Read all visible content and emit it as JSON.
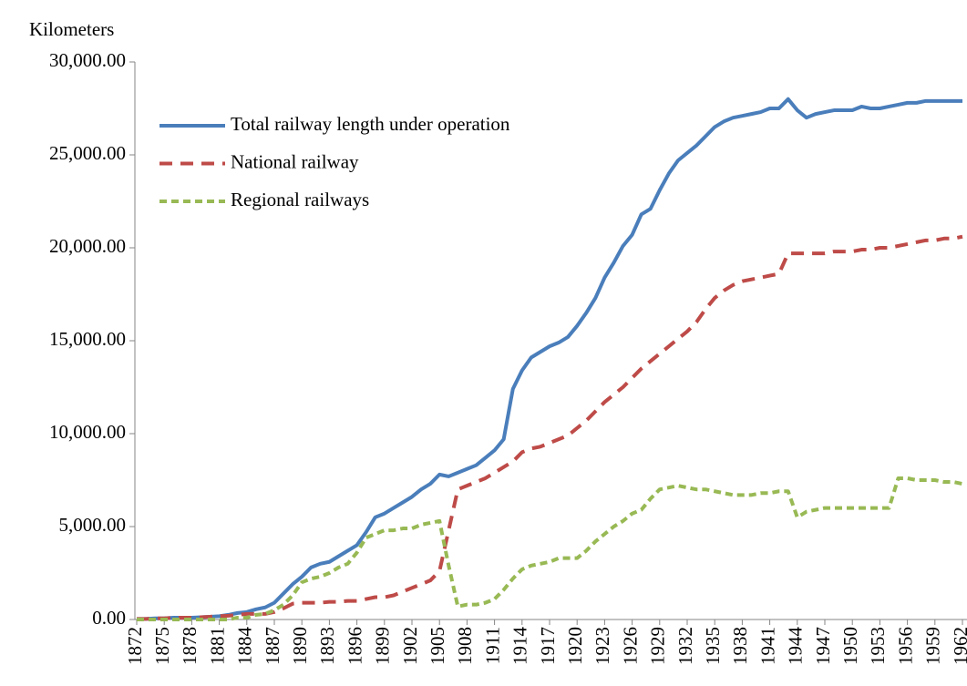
{
  "chart_data": {
    "type": "line",
    "y_label": "Kilometers",
    "x": [
      1872,
      1873,
      1874,
      1875,
      1876,
      1877,
      1878,
      1879,
      1880,
      1881,
      1882,
      1883,
      1884,
      1885,
      1886,
      1887,
      1888,
      1889,
      1890,
      1891,
      1892,
      1893,
      1894,
      1895,
      1896,
      1897,
      1898,
      1899,
      1900,
      1901,
      1902,
      1903,
      1904,
      1905,
      1906,
      1907,
      1908,
      1909,
      1910,
      1911,
      1912,
      1913,
      1914,
      1915,
      1916,
      1917,
      1918,
      1919,
      1920,
      1921,
      1922,
      1923,
      1924,
      1925,
      1926,
      1927,
      1928,
      1929,
      1930,
      1931,
      1932,
      1933,
      1934,
      1935,
      1936,
      1937,
      1938,
      1939,
      1940,
      1941,
      1942,
      1943,
      1944,
      1945,
      1946,
      1947,
      1948,
      1949,
      1950,
      1951,
      1952,
      1953,
      1954,
      1955,
      1956,
      1957,
      1958,
      1959,
      1960,
      1961,
      1962
    ],
    "series": [
      {
        "name": "Total railway length under operation",
        "color": "#4a7ebb",
        "dash": "none",
        "values": [
          29,
          29,
          60,
          60,
          100,
          100,
          100,
          120,
          150,
          180,
          250,
          350,
          400,
          550,
          650,
          900,
          1400,
          1900,
          2300,
          2800,
          3000,
          3100,
          3400,
          3700,
          4000,
          4700,
          5500,
          5700,
          6000,
          6300,
          6600,
          7000,
          7300,
          7800,
          7700,
          7900,
          8100,
          8300,
          8700,
          9100,
          9700,
          12400,
          13400,
          14100,
          14400,
          14700,
          14900,
          15200,
          15800,
          16500,
          17300,
          18400,
          19200,
          20100,
          20700,
          21800,
          22100,
          23100,
          24000,
          24700,
          25100,
          25500,
          26000,
          26500,
          26800,
          27000,
          27100,
          27200,
          27300,
          27500,
          27500,
          28000,
          27400,
          27000,
          27200,
          27300,
          27400,
          27400,
          27400,
          27600,
          27500,
          27500,
          27600,
          27700,
          27800,
          27800,
          27900,
          27900,
          27900,
          27900,
          27900
        ]
      },
      {
        "name": "National railway",
        "color": "#be4b48",
        "dash": "14 9",
        "values": [
          29,
          29,
          60,
          60,
          100,
          100,
          100,
          120,
          150,
          180,
          200,
          250,
          300,
          300,
          300,
          400,
          600,
          850,
          900,
          900,
          900,
          950,
          950,
          1000,
          1000,
          1100,
          1200,
          1200,
          1300,
          1500,
          1700,
          1900,
          2100,
          2600,
          4800,
          7000,
          7200,
          7400,
          7600,
          7900,
          8200,
          8500,
          9000,
          9200,
          9300,
          9500,
          9700,
          9900,
          10300,
          10700,
          11200,
          11700,
          12100,
          12500,
          13000,
          13500,
          13900,
          14300,
          14700,
          15100,
          15500,
          16000,
          16700,
          17300,
          17700,
          18000,
          18200,
          18300,
          18400,
          18500,
          18600,
          19700,
          19700,
          19700,
          19700,
          19700,
          19800,
          19800,
          19800,
          19900,
          19900,
          20000,
          20000,
          20100,
          20200,
          20300,
          20400,
          20400,
          20500,
          20500,
          20600
        ]
      },
      {
        "name": "Regional railways",
        "color": "#98b954",
        "dash": "8 5",
        "values": [
          0,
          0,
          0,
          0,
          0,
          0,
          0,
          0,
          0,
          0,
          0,
          100,
          100,
          250,
          300,
          500,
          800,
          1300,
          2000,
          2200,
          2300,
          2500,
          2800,
          3000,
          3600,
          4400,
          4600,
          4800,
          4800,
          4900,
          4900,
          5100,
          5200,
          5300,
          2900,
          700,
          800,
          800,
          900,
          1100,
          1600,
          2200,
          2700,
          2900,
          3000,
          3100,
          3300,
          3300,
          3300,
          3700,
          4200,
          4600,
          5000,
          5300,
          5700,
          5900,
          6500,
          7000,
          7100,
          7200,
          7100,
          7000,
          7000,
          6900,
          6800,
          6700,
          6700,
          6700,
          6800,
          6800,
          6900,
          6900,
          5500,
          5800,
          5900,
          6000,
          6000,
          6000,
          6000,
          6000,
          6000,
          6000,
          6000,
          7600,
          7600,
          7500,
          7500,
          7500,
          7400,
          7400,
          7300
        ]
      }
    ],
    "xlim": [
      1872,
      1962
    ],
    "xticks": [
      1872,
      1875,
      1878,
      1881,
      1884,
      1887,
      1890,
      1893,
      1896,
      1899,
      1902,
      1905,
      1908,
      1911,
      1914,
      1917,
      1920,
      1923,
      1926,
      1929,
      1932,
      1935,
      1938,
      1941,
      1944,
      1947,
      1950,
      1953,
      1956,
      1959,
      1962
    ],
    "ylim": [
      0,
      30000
    ],
    "yticks": [
      {
        "value": 0,
        "label": "0.00"
      },
      {
        "value": 5000,
        "label": "5,000.00"
      },
      {
        "value": 10000,
        "label": "10,000.00"
      },
      {
        "value": 15000,
        "label": "15,000.00"
      },
      {
        "value": 20000,
        "label": "20,000.00"
      },
      {
        "value": 25000,
        "label": "25,000.00"
      },
      {
        "value": 30000,
        "label": "30,000.00"
      }
    ],
    "legend": "upper left"
  }
}
